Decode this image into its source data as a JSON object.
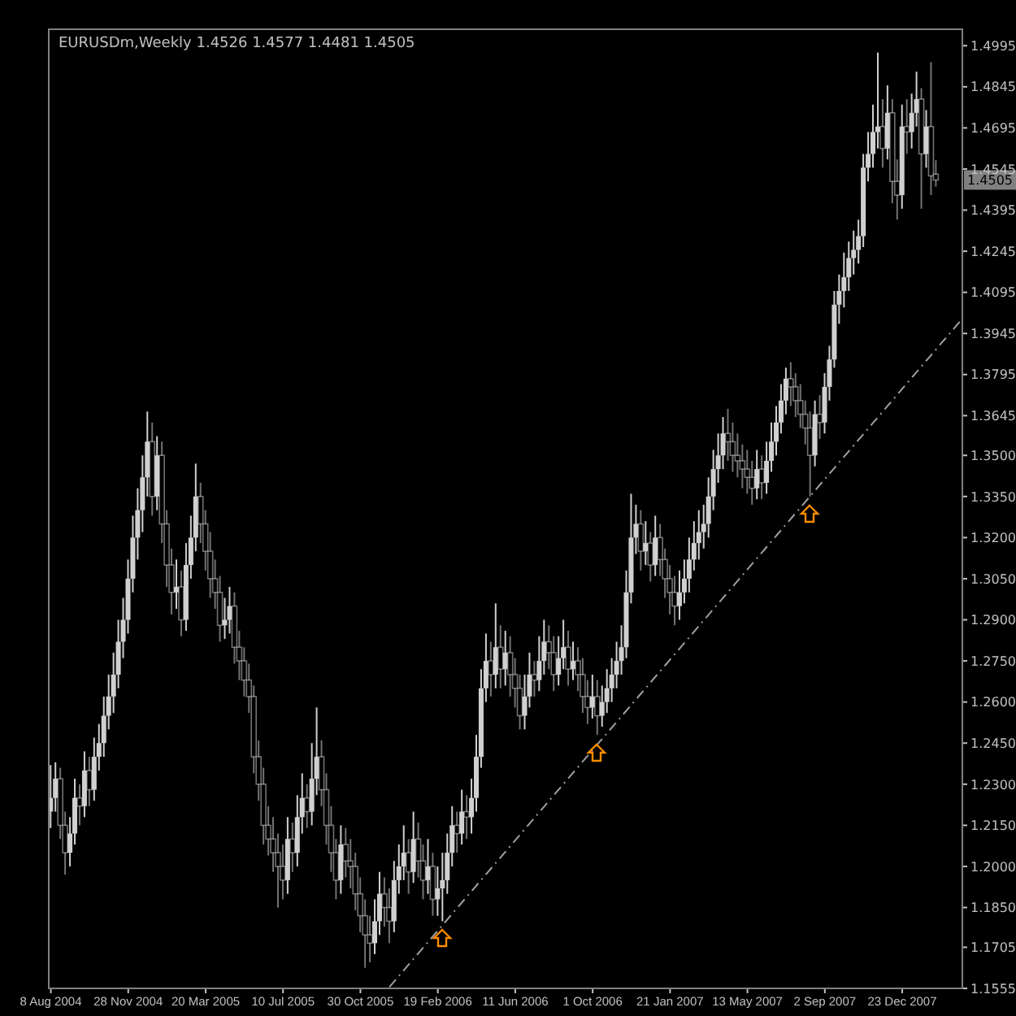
{
  "chart_data": {
    "type": "candlestick",
    "title": "EURUSDm,Weekly  1.4526 1.4577 1.4481 1.4505",
    "color": "#d0d0d0",
    "x": [
      "2004-08-08",
      "2004-08-15",
      "2004-08-22",
      "2004-08-29",
      "2004-09-05",
      "2004-09-12",
      "2004-09-19",
      "2004-09-26",
      "2004-10-03",
      "2004-10-10",
      "2004-10-17",
      "2004-10-24",
      "2004-10-31",
      "2004-11-07",
      "2004-11-14",
      "2004-11-21",
      "2004-11-28",
      "2004-12-05",
      "2004-12-12",
      "2004-12-19",
      "2004-12-26",
      "2005-01-02",
      "2005-01-09",
      "2005-01-16",
      "2005-01-23",
      "2005-01-30",
      "2005-02-06",
      "2005-02-13",
      "2005-02-20",
      "2005-02-27",
      "2005-03-06",
      "2005-03-13",
      "2005-03-20",
      "2005-03-27",
      "2005-04-03",
      "2005-04-10",
      "2005-04-17",
      "2005-04-24",
      "2005-05-01",
      "2005-05-08",
      "2005-05-15",
      "2005-05-22",
      "2005-05-29",
      "2005-06-05",
      "2005-06-12",
      "2005-06-19",
      "2005-06-26",
      "2005-07-03",
      "2005-07-10",
      "2005-07-17",
      "2005-07-24",
      "2005-07-31",
      "2005-08-07",
      "2005-08-14",
      "2005-08-21",
      "2005-08-28",
      "2005-09-04",
      "2005-09-11",
      "2005-09-18",
      "2005-09-25",
      "2005-10-02",
      "2005-10-09",
      "2005-10-16",
      "2005-10-23",
      "2005-10-30",
      "2005-11-06",
      "2005-11-13",
      "2005-11-20",
      "2005-11-27",
      "2005-12-04",
      "2005-12-11",
      "2005-12-18",
      "2005-12-25",
      "2006-01-01",
      "2006-01-08",
      "2006-01-15",
      "2006-01-22",
      "2006-01-29",
      "2006-02-05",
      "2006-02-12",
      "2006-02-19",
      "2006-02-26",
      "2006-03-05",
      "2006-03-12",
      "2006-03-19",
      "2006-03-26",
      "2006-04-02",
      "2006-04-09",
      "2006-04-16",
      "2006-04-23",
      "2006-04-30",
      "2006-05-07",
      "2006-05-14",
      "2006-05-21",
      "2006-05-28",
      "2006-06-04",
      "2006-06-11",
      "2006-06-18",
      "2006-06-25",
      "2006-07-02",
      "2006-07-09",
      "2006-07-16",
      "2006-07-23",
      "2006-07-30",
      "2006-08-06",
      "2006-08-13",
      "2006-08-20",
      "2006-08-27",
      "2006-09-03",
      "2006-09-10",
      "2006-09-17",
      "2006-09-24",
      "2006-10-01",
      "2006-10-08",
      "2006-10-15",
      "2006-10-22",
      "2006-10-29",
      "2006-11-05",
      "2006-11-12",
      "2006-11-19",
      "2006-11-26",
      "2006-12-03",
      "2006-12-10",
      "2006-12-17",
      "2006-12-24",
      "2006-12-31",
      "2007-01-07",
      "2007-01-14",
      "2007-01-21",
      "2007-01-28",
      "2007-02-04",
      "2007-02-11",
      "2007-02-18",
      "2007-02-25",
      "2007-03-04",
      "2007-03-11",
      "2007-03-18",
      "2007-03-25",
      "2007-04-01",
      "2007-04-08",
      "2007-04-15",
      "2007-04-22",
      "2007-04-29",
      "2007-05-06",
      "2007-05-13",
      "2007-05-20",
      "2007-05-27",
      "2007-06-03",
      "2007-06-10",
      "2007-06-17",
      "2007-06-24",
      "2007-07-01",
      "2007-07-08",
      "2007-07-15",
      "2007-07-22",
      "2007-07-29",
      "2007-08-05",
      "2007-08-12",
      "2007-08-19",
      "2007-08-26",
      "2007-09-02",
      "2007-09-09",
      "2007-09-16",
      "2007-09-23",
      "2007-09-30",
      "2007-10-07",
      "2007-10-14",
      "2007-10-21",
      "2007-10-28",
      "2007-11-04",
      "2007-11-11",
      "2007-11-18",
      "2007-11-25",
      "2007-12-02",
      "2007-12-09",
      "2007-12-16",
      "2007-12-23",
      "2007-12-30",
      "2008-01-06",
      "2008-01-13",
      "2008-01-20",
      "2008-01-27",
      "2008-02-03",
      "2008-02-10"
    ],
    "ohlc": [
      [
        1.22,
        1.237,
        1.214,
        1.225
      ],
      [
        1.225,
        1.238,
        1.22,
        1.232
      ],
      [
        1.232,
        1.236,
        1.21,
        1.215
      ],
      [
        1.215,
        1.22,
        1.197,
        1.205
      ],
      [
        1.205,
        1.218,
        1.2,
        1.212
      ],
      [
        1.212,
        1.232,
        1.208,
        1.225
      ],
      [
        1.225,
        1.23,
        1.215,
        1.222
      ],
      [
        1.222,
        1.242,
        1.218,
        1.235
      ],
      [
        1.235,
        1.24,
        1.222,
        1.228
      ],
      [
        1.228,
        1.247,
        1.224,
        1.24
      ],
      [
        1.24,
        1.252,
        1.235,
        1.245
      ],
      [
        1.245,
        1.262,
        1.24,
        1.255
      ],
      [
        1.255,
        1.27,
        1.25,
        1.262
      ],
      [
        1.262,
        1.278,
        1.256,
        1.27
      ],
      [
        1.27,
        1.29,
        1.265,
        1.282
      ],
      [
        1.282,
        1.298,
        1.276,
        1.29
      ],
      [
        1.29,
        1.312,
        1.285,
        1.305
      ],
      [
        1.305,
        1.328,
        1.3,
        1.32
      ],
      [
        1.32,
        1.338,
        1.312,
        1.33
      ],
      [
        1.33,
        1.35,
        1.322,
        1.342
      ],
      [
        1.342,
        1.366,
        1.335,
        1.355
      ],
      [
        1.355,
        1.362,
        1.328,
        1.335
      ],
      [
        1.335,
        1.357,
        1.33,
        1.35
      ],
      [
        1.35,
        1.355,
        1.318,
        1.325
      ],
      [
        1.325,
        1.33,
        1.302,
        1.31
      ],
      [
        1.31,
        1.316,
        1.292,
        1.3
      ],
      [
        1.3,
        1.312,
        1.294,
        1.302
      ],
      [
        1.302,
        1.308,
        1.284,
        1.29
      ],
      [
        1.29,
        1.318,
        1.286,
        1.31
      ],
      [
        1.31,
        1.328,
        1.305,
        1.32
      ],
      [
        1.32,
        1.347,
        1.315,
        1.335
      ],
      [
        1.335,
        1.34,
        1.318,
        1.325
      ],
      [
        1.325,
        1.33,
        1.308,
        1.315
      ],
      [
        1.315,
        1.322,
        1.298,
        1.305
      ],
      [
        1.305,
        1.312,
        1.294,
        1.3
      ],
      [
        1.3,
        1.306,
        1.282,
        1.288
      ],
      [
        1.288,
        1.298,
        1.283,
        1.29
      ],
      [
        1.29,
        1.302,
        1.285,
        1.295
      ],
      [
        1.295,
        1.3,
        1.274,
        1.28
      ],
      [
        1.28,
        1.286,
        1.268,
        1.275
      ],
      [
        1.275,
        1.28,
        1.262,
        1.268
      ],
      [
        1.268,
        1.274,
        1.256,
        1.262
      ],
      [
        1.262,
        1.266,
        1.234,
        1.24
      ],
      [
        1.24,
        1.246,
        1.224,
        1.23
      ],
      [
        1.23,
        1.236,
        1.208,
        1.215
      ],
      [
        1.215,
        1.222,
        1.204,
        1.21
      ],
      [
        1.21,
        1.218,
        1.198,
        1.205
      ],
      [
        1.205,
        1.212,
        1.185,
        1.2
      ],
      [
        1.2,
        1.208,
        1.188,
        1.195
      ],
      [
        1.195,
        1.218,
        1.19,
        1.21
      ],
      [
        1.21,
        1.216,
        1.198,
        1.205
      ],
      [
        1.205,
        1.226,
        1.2,
        1.218
      ],
      [
        1.218,
        1.234,
        1.212,
        1.225
      ],
      [
        1.225,
        1.23,
        1.214,
        1.22
      ],
      [
        1.22,
        1.245,
        1.215,
        1.232
      ],
      [
        1.232,
        1.258,
        1.226,
        1.24
      ],
      [
        1.24,
        1.246,
        1.222,
        1.228
      ],
      [
        1.228,
        1.234,
        1.208,
        1.215
      ],
      [
        1.215,
        1.222,
        1.198,
        1.205
      ],
      [
        1.205,
        1.21,
        1.188,
        1.195
      ],
      [
        1.195,
        1.215,
        1.19,
        1.208
      ],
      [
        1.208,
        1.214,
        1.196,
        1.202
      ],
      [
        1.202,
        1.21,
        1.192,
        1.2
      ],
      [
        1.2,
        1.205,
        1.184,
        1.19
      ],
      [
        1.19,
        1.196,
        1.176,
        1.182
      ],
      [
        1.182,
        1.188,
        1.163,
        1.175
      ],
      [
        1.175,
        1.182,
        1.165,
        1.172
      ],
      [
        1.172,
        1.188,
        1.168,
        1.18
      ],
      [
        1.18,
        1.198,
        1.175,
        1.19
      ],
      [
        1.19,
        1.196,
        1.178,
        1.185
      ],
      [
        1.185,
        1.192,
        1.172,
        1.18
      ],
      [
        1.18,
        1.202,
        1.176,
        1.195
      ],
      [
        1.195,
        1.208,
        1.19,
        1.2
      ],
      [
        1.2,
        1.215,
        1.195,
        1.205
      ],
      [
        1.205,
        1.21,
        1.19,
        1.198
      ],
      [
        1.198,
        1.22,
        1.194,
        1.21
      ],
      [
        1.21,
        1.216,
        1.196,
        1.202
      ],
      [
        1.202,
        1.208,
        1.188,
        1.195
      ],
      [
        1.195,
        1.21,
        1.19,
        1.2
      ],
      [
        1.2,
        1.205,
        1.182,
        1.188
      ],
      [
        1.188,
        1.2,
        1.182,
        1.192
      ],
      [
        1.192,
        1.205,
        1.18,
        1.195
      ],
      [
        1.195,
        1.212,
        1.19,
        1.205
      ],
      [
        1.205,
        1.222,
        1.2,
        1.215
      ],
      [
        1.215,
        1.22,
        1.205,
        1.212
      ],
      [
        1.212,
        1.228,
        1.208,
        1.22
      ],
      [
        1.22,
        1.226,
        1.21,
        1.218
      ],
      [
        1.218,
        1.232,
        1.212,
        1.225
      ],
      [
        1.225,
        1.248,
        1.22,
        1.24
      ],
      [
        1.24,
        1.272,
        1.236,
        1.265
      ],
      [
        1.265,
        1.285,
        1.26,
        1.275
      ],
      [
        1.275,
        1.282,
        1.262,
        1.27
      ],
      [
        1.27,
        1.296,
        1.265,
        1.28
      ],
      [
        1.28,
        1.288,
        1.265,
        1.272
      ],
      [
        1.272,
        1.286,
        1.266,
        1.278
      ],
      [
        1.278,
        1.284,
        1.262,
        1.27
      ],
      [
        1.27,
        1.276,
        1.258,
        1.265
      ],
      [
        1.265,
        1.27,
        1.25,
        1.255
      ],
      [
        1.255,
        1.27,
        1.25,
        1.262
      ],
      [
        1.262,
        1.278,
        1.258,
        1.27
      ],
      [
        1.27,
        1.275,
        1.262,
        1.268
      ],
      [
        1.268,
        1.284,
        1.264,
        1.275
      ],
      [
        1.275,
        1.29,
        1.27,
        1.282
      ],
      [
        1.282,
        1.288,
        1.272,
        1.278
      ],
      [
        1.278,
        1.284,
        1.264,
        1.27
      ],
      [
        1.27,
        1.284,
        1.266,
        1.276
      ],
      [
        1.276,
        1.29,
        1.272,
        1.28
      ],
      [
        1.28,
        1.286,
        1.266,
        1.272
      ],
      [
        1.272,
        1.282,
        1.268,
        1.275
      ],
      [
        1.275,
        1.28,
        1.264,
        1.27
      ],
      [
        1.27,
        1.276,
        1.256,
        1.262
      ],
      [
        1.262,
        1.268,
        1.252,
        1.258
      ],
      [
        1.258,
        1.27,
        1.254,
        1.262
      ],
      [
        1.262,
        1.268,
        1.248,
        1.255
      ],
      [
        1.255,
        1.266,
        1.251,
        1.26
      ],
      [
        1.26,
        1.272,
        1.256,
        1.265
      ],
      [
        1.265,
        1.276,
        1.26,
        1.27
      ],
      [
        1.27,
        1.282,
        1.265,
        1.275
      ],
      [
        1.275,
        1.288,
        1.27,
        1.28
      ],
      [
        1.28,
        1.308,
        1.276,
        1.3
      ],
      [
        1.3,
        1.336,
        1.296,
        1.32
      ],
      [
        1.32,
        1.332,
        1.314,
        1.325
      ],
      [
        1.325,
        1.33,
        1.308,
        1.315
      ],
      [
        1.315,
        1.326,
        1.31,
        1.318
      ],
      [
        1.318,
        1.322,
        1.304,
        1.31
      ],
      [
        1.31,
        1.328,
        1.306,
        1.32
      ],
      [
        1.32,
        1.325,
        1.306,
        1.312
      ],
      [
        1.312,
        1.316,
        1.298,
        1.305
      ],
      [
        1.305,
        1.31,
        1.292,
        1.3
      ],
      [
        1.3,
        1.306,
        1.288,
        1.295
      ],
      [
        1.295,
        1.308,
        1.29,
        1.3
      ],
      [
        1.3,
        1.312,
        1.296,
        1.305
      ],
      [
        1.305,
        1.32,
        1.3,
        1.312
      ],
      [
        1.312,
        1.326,
        1.308,
        1.318
      ],
      [
        1.318,
        1.33,
        1.312,
        1.322
      ],
      [
        1.322,
        1.332,
        1.316,
        1.325
      ],
      [
        1.325,
        1.342,
        1.32,
        1.335
      ],
      [
        1.335,
        1.352,
        1.33,
        1.345
      ],
      [
        1.345,
        1.358,
        1.34,
        1.35
      ],
      [
        1.35,
        1.364,
        1.345,
        1.358
      ],
      [
        1.358,
        1.367,
        1.348,
        1.355
      ],
      [
        1.355,
        1.362,
        1.344,
        1.35
      ],
      [
        1.35,
        1.358,
        1.342,
        1.348
      ],
      [
        1.348,
        1.354,
        1.338,
        1.345
      ],
      [
        1.345,
        1.352,
        1.336,
        1.342
      ],
      [
        1.342,
        1.348,
        1.332,
        1.338
      ],
      [
        1.338,
        1.352,
        1.334,
        1.345
      ],
      [
        1.345,
        1.35,
        1.334,
        1.34
      ],
      [
        1.34,
        1.355,
        1.336,
        1.348
      ],
      [
        1.348,
        1.362,
        1.344,
        1.355
      ],
      [
        1.355,
        1.368,
        1.35,
        1.362
      ],
      [
        1.362,
        1.376,
        1.358,
        1.37
      ],
      [
        1.37,
        1.382,
        1.365,
        1.378
      ],
      [
        1.378,
        1.384,
        1.368,
        1.375
      ],
      [
        1.375,
        1.38,
        1.364,
        1.37
      ],
      [
        1.37,
        1.376,
        1.36,
        1.365
      ],
      [
        1.365,
        1.37,
        1.354,
        1.36
      ],
      [
        1.36,
        1.366,
        1.335,
        1.35
      ],
      [
        1.35,
        1.37,
        1.346,
        1.365
      ],
      [
        1.365,
        1.372,
        1.356,
        1.362
      ],
      [
        1.362,
        1.38,
        1.358,
        1.375
      ],
      [
        1.375,
        1.39,
        1.37,
        1.385
      ],
      [
        1.385,
        1.41,
        1.382,
        1.405
      ],
      [
        1.405,
        1.416,
        1.398,
        1.41
      ],
      [
        1.41,
        1.424,
        1.404,
        1.415
      ],
      [
        1.415,
        1.428,
        1.41,
        1.422
      ],
      [
        1.422,
        1.432,
        1.416,
        1.425
      ],
      [
        1.425,
        1.436,
        1.42,
        1.43
      ],
      [
        1.43,
        1.46,
        1.426,
        1.455
      ],
      [
        1.455,
        1.468,
        1.45,
        1.46
      ],
      [
        1.46,
        1.478,
        1.455,
        1.468
      ],
      [
        1.468,
        1.497,
        1.462,
        1.47
      ],
      [
        1.47,
        1.48,
        1.455,
        1.462
      ],
      [
        1.462,
        1.485,
        1.458,
        1.475
      ],
      [
        1.475,
        1.48,
        1.442,
        1.45
      ],
      [
        1.45,
        1.458,
        1.436,
        1.445
      ],
      [
        1.445,
        1.478,
        1.44,
        1.47
      ],
      [
        1.47,
        1.48,
        1.46,
        1.468
      ],
      [
        1.468,
        1.482,
        1.462,
        1.475
      ],
      [
        1.475,
        1.49,
        1.47,
        1.48
      ],
      [
        1.48,
        1.484,
        1.44,
        1.46
      ],
      [
        1.46,
        1.476,
        1.455,
        1.47
      ],
      [
        1.47,
        1.4935,
        1.445,
        1.452
      ],
      [
        1.4526,
        1.4577,
        1.4481,
        1.4505
      ]
    ],
    "series": [
      {
        "type": "line",
        "x": [
          "2005-12-11",
          "2008-03-16"
        ],
        "values": [
          1.156,
          1.399
        ],
        "color": "#a0a0a0",
        "line_style": "dashed"
      }
    ],
    "annotations": [
      {
        "text": "1.4505",
        "y": 1.4505
      }
    ],
    "xlim": [
      "2004-08-05",
      "2008-03-19"
    ],
    "xticks": [
      {
        "value": "2004-08-08",
        "label": "8 Aug 2004"
      },
      {
        "value": "2004-11-28",
        "label": "28 Nov 2004"
      },
      {
        "value": "2005-03-20",
        "label": "20 Mar 2005"
      },
      {
        "value": "2005-07-10",
        "label": "10 Jul 2005"
      },
      {
        "value": "2005-10-30",
        "label": "30 Oct 2005"
      },
      {
        "value": "2006-02-19",
        "label": "19 Feb 2006"
      },
      {
        "value": "2006-06-11",
        "label": "11 Jun 2006"
      },
      {
        "value": "2006-10-01",
        "label": "1 Oct 2006"
      },
      {
        "value": "2007-01-21",
        "label": "21 Jan 2007"
      },
      {
        "value": "2007-05-13",
        "label": "13 May 2007"
      },
      {
        "value": "2007-09-02",
        "label": "2 Sep 2007"
      },
      {
        "value": "2007-12-23",
        "label": "23 Dec 2007"
      }
    ],
    "ylim": [
      1.1555,
      1.5055
    ],
    "yticks": [
      {
        "value": 1.1555,
        "label": "1.1555"
      },
      {
        "value": 1.1705,
        "label": "1.1705"
      },
      {
        "value": 1.185,
        "label": "1.1850"
      },
      {
        "value": 1.2,
        "label": "1.2000"
      },
      {
        "value": 1.215,
        "label": "1.2150"
      },
      {
        "value": 1.23,
        "label": "1.2300"
      },
      {
        "value": 1.245,
        "label": "1.2450"
      },
      {
        "value": 1.26,
        "label": "1.2600"
      },
      {
        "value": 1.275,
        "label": "1.2750"
      },
      {
        "value": 1.29,
        "label": "1.2900"
      },
      {
        "value": 1.305,
        "label": "1.3050"
      },
      {
        "value": 1.32,
        "label": "1.3200"
      },
      {
        "value": 1.335,
        "label": "1.3350"
      },
      {
        "value": 1.35,
        "label": "1.3500"
      },
      {
        "value": 1.3645,
        "label": "1.3645"
      },
      {
        "value": 1.3795,
        "label": "1.3795"
      },
      {
        "value": 1.3945,
        "label": "1.3945"
      },
      {
        "value": 1.4095,
        "label": "1.4095"
      },
      {
        "value": 1.4245,
        "label": "1.4245"
      },
      {
        "value": 1.4395,
        "label": "1.4395"
      },
      {
        "value": 1.4545,
        "label": "1.4545"
      },
      {
        "value": 1.4695,
        "label": "1.4695"
      },
      {
        "value": 1.4845,
        "label": "1.4845"
      },
      {
        "value": 1.4995,
        "label": "1.4995"
      }
    ],
    "tick_labels": "xy"
  }
}
